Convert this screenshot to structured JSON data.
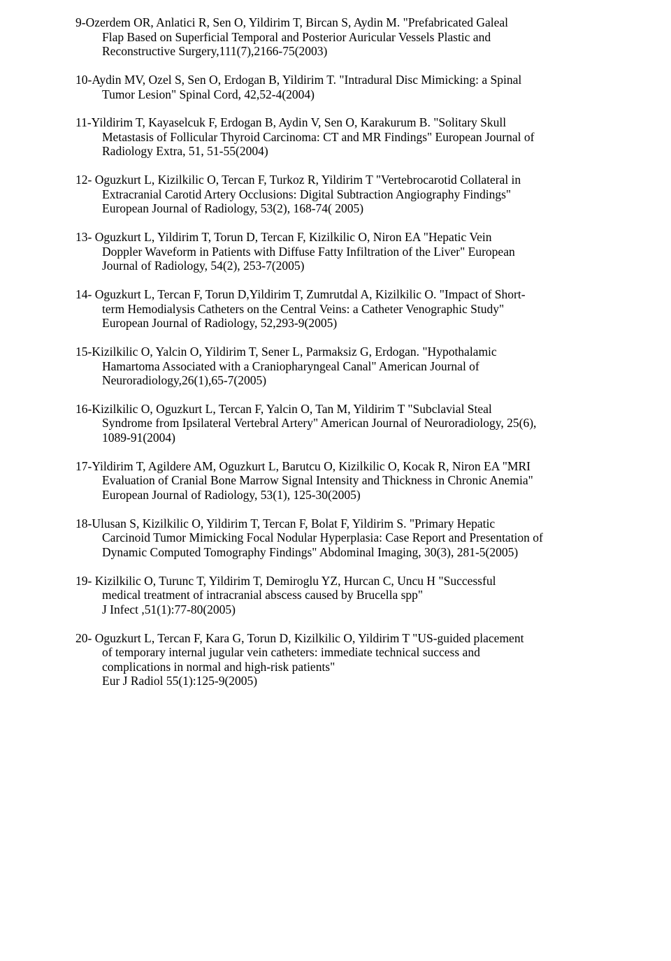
{
  "refs": [
    {
      "first": "9-Ozerdem OR, Anlatici R, Sen O, Yildirim T, Bircan S, Aydin M. \"Prefabricated Galeal",
      "cont": [
        "Flap Based on Superficial Temporal and Posterior Auricular Vessels Plastic and",
        "Reconstructive Surgery,111(7),2166-75(2003)"
      ]
    },
    {
      "first": "10-Aydin MV, Ozel S, Sen O, Erdogan B, Yildirim T. \"Intradural Disc Mimicking: a Spinal",
      "cont": [
        "Tumor Lesion\" Spinal Cord, 42,52-4(2004)"
      ]
    },
    {
      "first": "11-Yildirim T, Kayaselcuk F, Erdogan B, Aydin V, Sen O, Karakurum B. \"Solitary Skull",
      "cont": [
        "Metastasis of Follicular Thyroid Carcinoma: CT and MR Findings\" European Journal of",
        "Radiology Extra, 51, 51-55(2004)"
      ]
    },
    {
      "first": "12- Oguzkurt L, Kizilkilic O, Tercan F, Turkoz R, Yildirim T \"Vertebrocarotid Collateral in",
      "cont": [
        "Extracranial Carotid Artery Occlusions: Digital Subtraction Angiography Findings\"",
        "European Journal of Radiology, 53(2), 168-74( 2005)"
      ]
    },
    {
      "first": "13- Oguzkurt L, Yildirim T, Torun D, Tercan F, Kizilkilic O, Niron EA \"Hepatic Vein",
      "cont": [
        "Doppler Waveform in Patients with Diffuse Fatty Infiltration of the Liver\" European",
        "Journal of Radiology, 54(2), 253-7(2005)"
      ]
    },
    {
      "first": "14- Oguzkurt L, Tercan F, Torun D,Yildirim T, Zumrutdal A, Kizilkilic O. \"Impact of Short-",
      "cont": [
        "term Hemodialysis Catheters on the Central Veins: a Catheter Venographic Study\"",
        "European Journal of Radiology, 52,293-9(2005)"
      ]
    },
    {
      "first": "15-Kizilkilic O, Yalcin O, Yildirim T, Sener L, Parmaksiz G, Erdogan. \"Hypothalamic",
      "cont": [
        "Hamartoma Associated with a Craniopharyngeal Canal\" American Journal of",
        "Neuroradiology,26(1),65-7(2005)"
      ]
    },
    {
      "first": "16-Kizilkilic O, Oguzkurt L, Tercan F, Yalcin O, Tan M, Yildirim T \"Subclavial Steal",
      "cont": [
        "Syndrome from Ipsilateral Vertebral Artery\" American Journal of Neuroradiology, 25(6),",
        "1089-91(2004)"
      ]
    },
    {
      "first": "17-Yildirim T, Agildere AM, Oguzkurt L, Barutcu O, Kizilkilic O, Kocak R, Niron EA \"MRI",
      "cont": [
        "Evaluation of Cranial Bone Marrow Signal Intensity and Thickness in Chronic Anemia\"",
        "European Journal of Radiology, 53(1), 125-30(2005)"
      ]
    },
    {
      "first": "18-Ulusan S, Kizilkilic O, Yildirim T, Tercan F, Bolat F, Yildirim S. \"Primary Hepatic",
      "cont": [
        "Carcinoid Tumor Mimicking Focal Nodular Hyperplasia: Case Report and Presentation of",
        "Dynamic Computed Tomography Findings\" Abdominal Imaging, 30(3), 281-5(2005)"
      ]
    },
    {
      "first": "19- Kizilkilic O, Turunc T, Yildirim T, Demiroglu YZ, Hurcan C, Uncu H \"Successful",
      "cont": [
        "medical treatment of intracranial abscess caused by Brucella spp\"",
        "J Infect ,51(1):77-80(2005)"
      ]
    },
    {
      "first": "20- Oguzkurt L, Tercan F, Kara G, Torun D, Kizilkilic O, Yildirim T \"US-guided placement",
      "cont": [
        "of temporary internal jugular vein catheters: immediate technical success and",
        "complications in normal and high-risk patients\"",
        "Eur J Radiol 55(1):125-9(2005)"
      ]
    }
  ]
}
